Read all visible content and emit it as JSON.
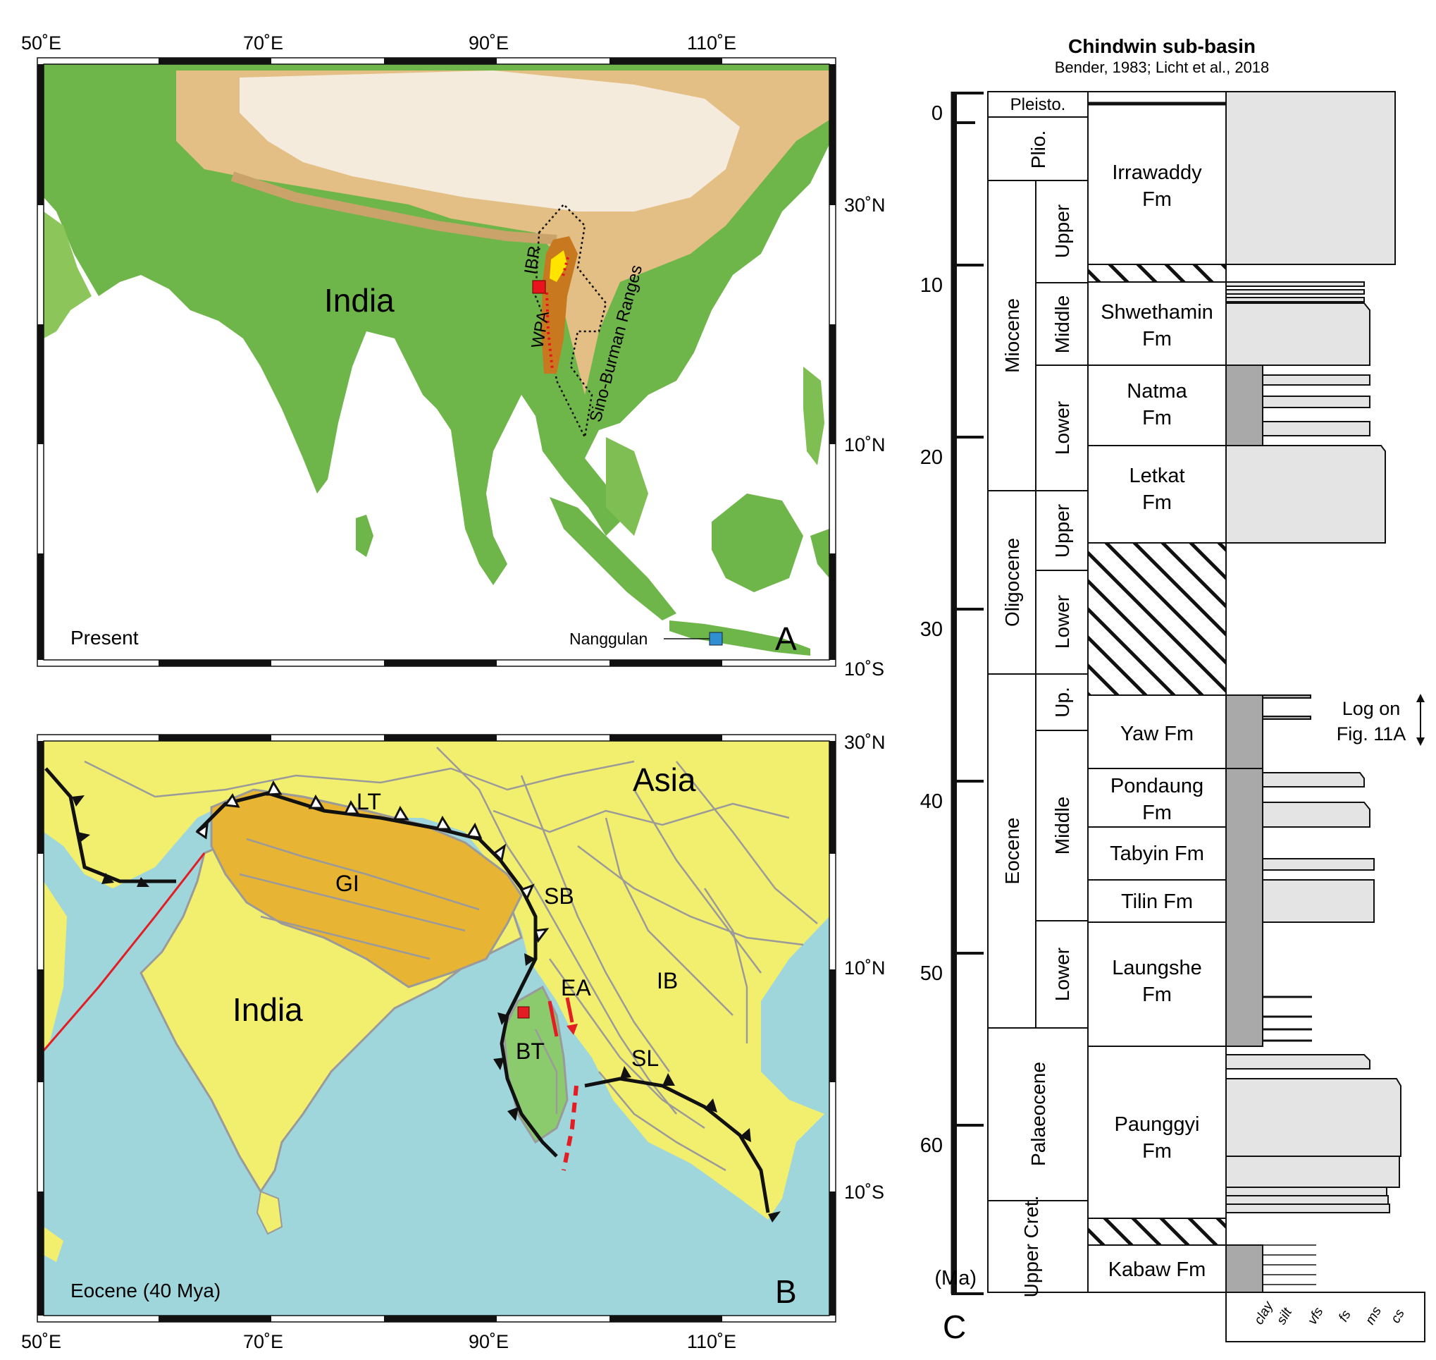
{
  "map_a": {
    "lon_labels": [
      "50˚E",
      "70˚E",
      "90˚E",
      "110˚E"
    ],
    "lat_labels": [
      "30˚N",
      "10˚N",
      "10˚S"
    ],
    "place_india": "India",
    "label_ibr": "IBR",
    "label_wpa": "WPA",
    "label_sino": "Sino-Burman Ranges",
    "label_nanggulan": "Nanggulan",
    "label_time": "Present",
    "panel_letter": "A",
    "colors": {
      "lowland": "#6fb64a",
      "upland": "#e6c48c",
      "highland": "#f6ecde",
      "sea": "#ffffff",
      "study_area": "#c8781e",
      "ibr": "#ffe400",
      "site_red": "#e8131b",
      "site_blue": "#2f8fd0"
    }
  },
  "map_b": {
    "lon_labels": [
      "50˚E",
      "70˚E",
      "90˚E",
      "110˚E"
    ],
    "lat_labels": [
      "30˚N",
      "10˚N",
      "10˚S"
    ],
    "place_asia": "Asia",
    "place_india": "India",
    "label_lt": "LT",
    "label_gi": "GI",
    "label_sb": "SB",
    "label_ea": "EA",
    "label_ib": "IB",
    "label_bt": "BT",
    "label_sl": "SL",
    "label_time": "Eocene (40 Mya)",
    "panel_letter": "B",
    "colors": {
      "land": "#f2ef6f",
      "sea": "#9fd6dc",
      "greater_india": "#e8b434",
      "burma_terrane": "#8cca6e",
      "faults": "#9a9a9a",
      "subduction": "#111111",
      "ridge": "#e41c23"
    }
  },
  "column": {
    "title": "Chindwin sub-basin",
    "subtitle": "Bender, 1983; Licht et al., 2018",
    "age_unit": "(Ma)",
    "age_ticks": [
      "0",
      "10",
      "20",
      "30",
      "40",
      "50",
      "60"
    ],
    "epochs": [
      "Pleisto.",
      "Plio.",
      "Miocene",
      "Oligocene",
      "Eocene",
      "Palaeocene",
      "Upper Cret."
    ],
    "subepochs": [
      "Upper",
      "Middle",
      "Lower",
      "Upper",
      "Lower",
      "Up.",
      "Middle",
      "Lower"
    ],
    "formations": [
      {
        "line1": "Irrawaddy",
        "line2": "Fm"
      },
      {
        "line1": "Shwethamin",
        "line2": "Fm"
      },
      {
        "line1": "Natma",
        "line2": "Fm"
      },
      {
        "line1": "Letkat",
        "line2": "Fm"
      },
      {
        "line1": "Yaw Fm",
        "line2": ""
      },
      {
        "line1": "Pondaung",
        "line2": "Fm"
      },
      {
        "line1": "Tabyin Fm",
        "line2": ""
      },
      {
        "line1": "Tilin Fm",
        "line2": ""
      },
      {
        "line1": "Laungshe",
        "line2": "Fm"
      },
      {
        "line1": "Paunggyi",
        "line2": "Fm"
      },
      {
        "line1": "Kabaw Fm",
        "line2": ""
      }
    ],
    "log_note_line1": "Log on",
    "log_note_line2": "Fig. 11A",
    "grain_sizes": [
      "clay",
      "silt",
      "vfs",
      "fs",
      "ms",
      "cs"
    ],
    "panel_letter": "C",
    "colors": {
      "sand": "#e4e4e4",
      "mud": "#a9a9a9"
    }
  }
}
